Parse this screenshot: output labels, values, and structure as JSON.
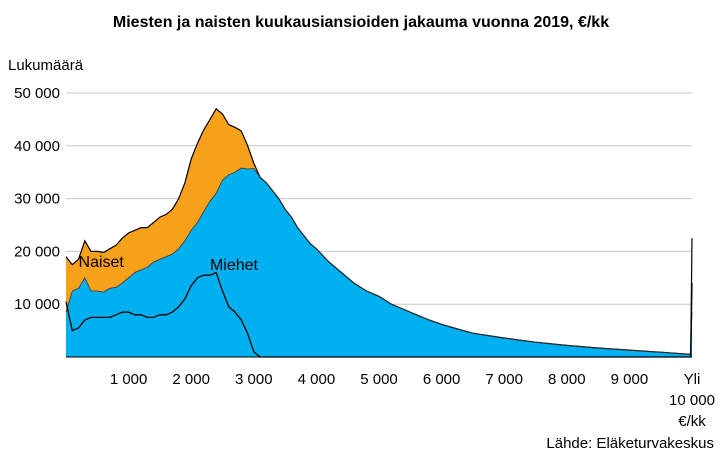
{
  "chart_data": {
    "type": "area",
    "title": "Miesten ja naisten kuukausiansioiden jakauma vuonna 2019, €/kk",
    "ylabel": "Lukumäärä",
    "xunit": "€/kk",
    "source": "Lähde: Eläketurvakeskus",
    "ylim": [
      0,
      50000
    ],
    "yticks": [
      "10 000",
      "20 000",
      "30 000",
      "40 000",
      "50 000"
    ],
    "ytick_values": [
      10000,
      20000,
      30000,
      40000,
      50000
    ],
    "xlim": [
      0,
      10000
    ],
    "xticks": [
      "1 000",
      "2 000",
      "3 000",
      "4 000",
      "5 000",
      "6 000",
      "7 000",
      "8 000",
      "9 000",
      "Yli 10 000"
    ],
    "xtick_values": [
      1000,
      2000,
      3000,
      4000,
      5000,
      6000,
      7000,
      8000,
      9000,
      10000
    ],
    "colors": {
      "Naiset": "#f7a11a",
      "Miehet": "#00b0f0"
    },
    "stacked": true,
    "series": [
      {
        "name": "Miehet",
        "points": [
          [
            0,
            8500
          ],
          [
            100,
            12500
          ],
          [
            200,
            13000
          ],
          [
            300,
            15000
          ],
          [
            400,
            12500
          ],
          [
            500,
            12500
          ],
          [
            600,
            12300
          ],
          [
            700,
            13000
          ],
          [
            800,
            13200
          ],
          [
            900,
            14000
          ],
          [
            1000,
            15000
          ],
          [
            1100,
            16000
          ],
          [
            1200,
            16500
          ],
          [
            1300,
            17000
          ],
          [
            1400,
            18000
          ],
          [
            1500,
            18500
          ],
          [
            1600,
            19000
          ],
          [
            1700,
            19500
          ],
          [
            1800,
            20500
          ],
          [
            1900,
            22000
          ],
          [
            2000,
            24000
          ],
          [
            2100,
            25500
          ],
          [
            2200,
            27500
          ],
          [
            2300,
            29500
          ],
          [
            2400,
            31000
          ],
          [
            2500,
            33500
          ],
          [
            2600,
            34500
          ],
          [
            2700,
            35000
          ],
          [
            2800,
            35800
          ],
          [
            2900,
            35600
          ],
          [
            3000,
            35700
          ],
          [
            3100,
            34000
          ],
          [
            3200,
            33000
          ],
          [
            3300,
            31500
          ],
          [
            3400,
            30000
          ],
          [
            3500,
            28000
          ],
          [
            3600,
            26500
          ],
          [
            3700,
            24500
          ],
          [
            3800,
            23000
          ],
          [
            3900,
            21500
          ],
          [
            4000,
            20500
          ],
          [
            4200,
            18000
          ],
          [
            4400,
            16000
          ],
          [
            4600,
            14000
          ],
          [
            4800,
            12500
          ],
          [
            5000,
            11500
          ],
          [
            5200,
            10000
          ],
          [
            5400,
            9000
          ],
          [
            5600,
            8000
          ],
          [
            5800,
            7000
          ],
          [
            6000,
            6200
          ],
          [
            6200,
            5500
          ],
          [
            6500,
            4500
          ],
          [
            7000,
            3600
          ],
          [
            7500,
            2800
          ],
          [
            8000,
            2200
          ],
          [
            8500,
            1700
          ],
          [
            9000,
            1300
          ],
          [
            9500,
            900
          ],
          [
            9980,
            500
          ],
          [
            10000,
            8500
          ]
        ]
      },
      {
        "name": "Naiset",
        "points": [
          [
            0,
            10500
          ],
          [
            100,
            5000
          ],
          [
            200,
            5500
          ],
          [
            300,
            7000
          ],
          [
            400,
            7500
          ],
          [
            500,
            7500
          ],
          [
            600,
            7500
          ],
          [
            700,
            7500
          ],
          [
            800,
            8000
          ],
          [
            900,
            8500
          ],
          [
            1000,
            8500
          ],
          [
            1100,
            8000
          ],
          [
            1200,
            8000
          ],
          [
            1300,
            7500
          ],
          [
            1400,
            7500
          ],
          [
            1500,
            8000
          ],
          [
            1600,
            8000
          ],
          [
            1700,
            8500
          ],
          [
            1800,
            9500
          ],
          [
            1900,
            11000
          ],
          [
            2000,
            13500
          ],
          [
            2100,
            15000
          ],
          [
            2200,
            15500
          ],
          [
            2300,
            15500
          ],
          [
            2400,
            16000
          ],
          [
            2500,
            12500
          ],
          [
            2600,
            9500
          ],
          [
            2700,
            8500
          ],
          [
            2800,
            7000
          ],
          [
            2900,
            4500
          ],
          [
            3000,
            1000
          ],
          [
            3100,
            0
          ],
          [
            9980,
            0
          ],
          [
            10000,
            14000
          ]
        ]
      }
    ],
    "labels": [
      {
        "text": "Naiset",
        "x": 200,
        "y": 17000
      },
      {
        "text": "Miehet",
        "x": 2300,
        "y": 16500
      }
    ]
  }
}
